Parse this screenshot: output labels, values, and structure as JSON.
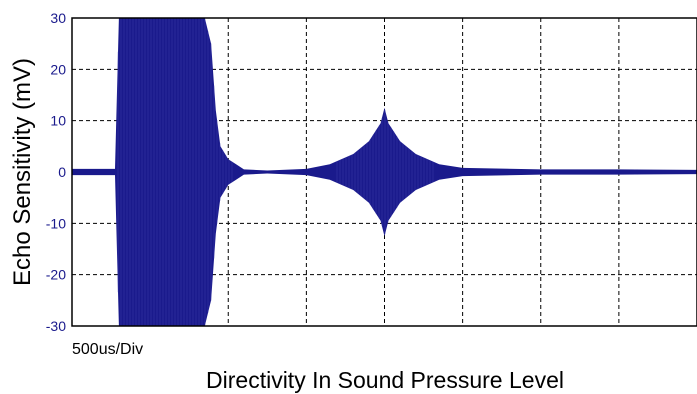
{
  "chart_data": {
    "type": "line",
    "title": "",
    "xlabel": "Directivity In Sound Pressure Level",
    "ylabel": "Echo Sensitivity (mV)",
    "annotation": "500us/Div",
    "ylim": [
      -30,
      30
    ],
    "xlim": [
      0,
      8
    ],
    "y_ticks": [
      "30",
      "20",
      "10",
      "0",
      "-10",
      "-20",
      "-30"
    ],
    "grid": true,
    "colors": {
      "signal": "#1a1a8c",
      "grid": "#000000",
      "tick_labels": "#1a1a8c"
    },
    "series": [
      {
        "points": [
          [
            0.0,
            0.6
          ],
          [
            0.55,
            0.6
          ],
          [
            0.6,
            30
          ],
          [
            1.7,
            30
          ],
          [
            1.78,
            25
          ],
          [
            1.84,
            12
          ],
          [
            1.9,
            5
          ],
          [
            2.0,
            2.5
          ],
          [
            2.1,
            1.5
          ],
          [
            2.2,
            0.5
          ],
          [
            2.5,
            0.3
          ],
          [
            3.0,
            0.6
          ],
          [
            3.3,
            1.5
          ],
          [
            3.6,
            3.5
          ],
          [
            3.8,
            6
          ],
          [
            3.95,
            9.5
          ],
          [
            4.0,
            12.5
          ],
          [
            4.05,
            9.5
          ],
          [
            4.2,
            6
          ],
          [
            4.4,
            3.5
          ],
          [
            4.7,
            1.5
          ],
          [
            5.0,
            0.8
          ],
          [
            6.0,
            0.5
          ],
          [
            7.0,
            0.5
          ],
          [
            8.0,
            0.4
          ]
        ]
      }
    ]
  }
}
